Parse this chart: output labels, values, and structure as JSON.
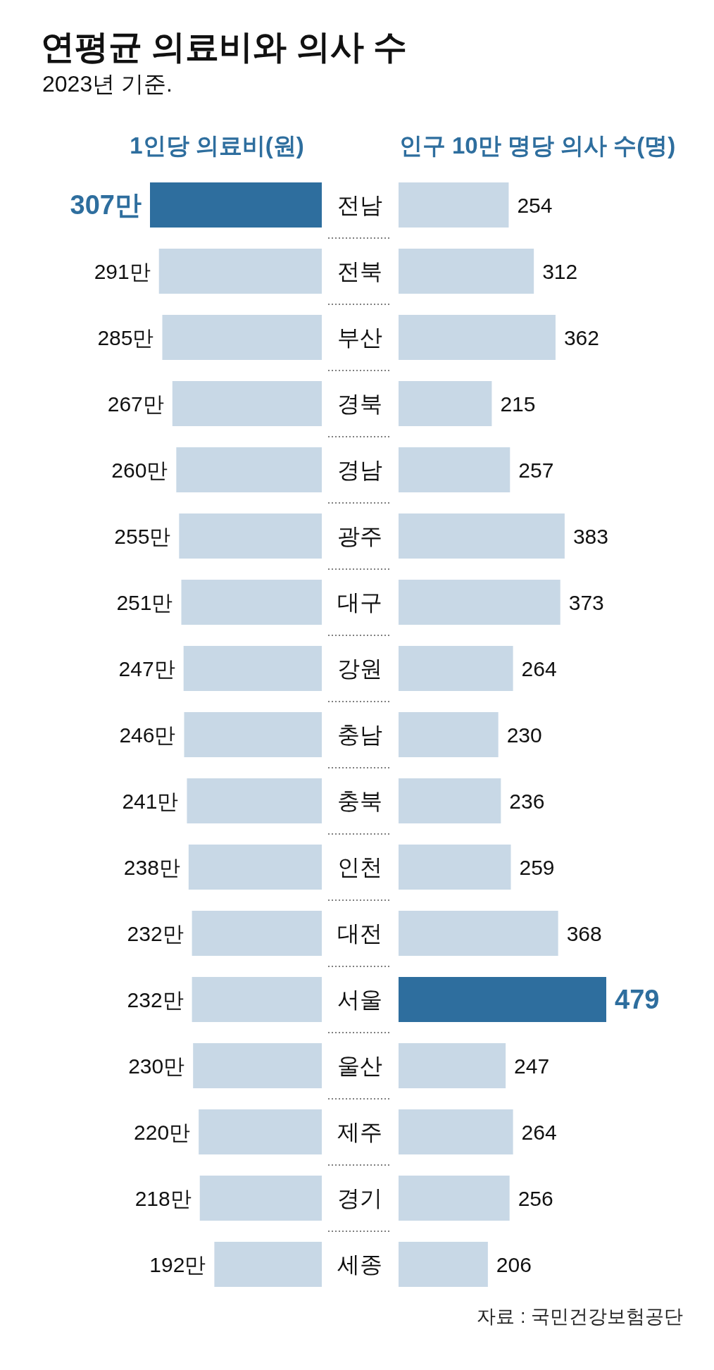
{
  "chart_data": [
    {
      "type": "bar",
      "orientation": "horizontal",
      "title": "연평균 의료비와 의사 수",
      "subtitle": "2023년 기준.",
      "xlabel": "1인당 의료비(원)",
      "categories": [
        "전남",
        "전북",
        "부산",
        "경북",
        "경남",
        "광주",
        "대구",
        "강원",
        "충남",
        "충북",
        "인천",
        "대전",
        "서울",
        "울산",
        "제주",
        "경기",
        "세종"
      ],
      "values": [
        307,
        291,
        285,
        267,
        260,
        255,
        251,
        247,
        246,
        241,
        238,
        232,
        232,
        230,
        220,
        218,
        192
      ],
      "value_labels": [
        "307만",
        "291만",
        "285만",
        "267만",
        "260만",
        "255만",
        "251만",
        "247만",
        "246만",
        "241만",
        "238만",
        "232만",
        "232만",
        "230만",
        "220만",
        "218만",
        "192만"
      ],
      "colors": [
        "#2e6e9e",
        "#c8d8e6",
        "#c8d8e6",
        "#c8d8e6",
        "#c8d8e6",
        "#c8d8e6",
        "#c8d8e6",
        "#c8d8e6",
        "#c8d8e6",
        "#c8d8e6",
        "#c8d8e6",
        "#c8d8e6",
        "#c8d8e6",
        "#c8d8e6",
        "#c8d8e6",
        "#c8d8e6",
        "#c8d8e6"
      ]
    },
    {
      "type": "bar",
      "orientation": "horizontal",
      "xlabel": "인구 10만 명당 의사 수(명)",
      "data_labels": true,
      "annotations": [
        "자료 : 국민건강보험공단"
      ],
      "categories": [
        null,
        null,
        null,
        null,
        null,
        null,
        null,
        null,
        null,
        null,
        null,
        null,
        null,
        null,
        null,
        null,
        null
      ],
      "values": [
        254,
        312,
        362,
        215,
        257,
        383,
        373,
        264,
        230,
        236,
        259,
        368,
        479,
        247,
        264,
        256,
        206
      ],
      "colors": [
        "#c8d8e6",
        "#c8d8e6",
        "#c8d8e6",
        "#c8d8e6",
        "#c8d8e6",
        "#c8d8e6",
        "#c8d8e6",
        "#c8d8e6",
        "#c8d8e6",
        "#c8d8e6",
        "#c8d8e6",
        "#c8d8e6",
        "#2e6e9e",
        "#c8d8e6",
        "#c8d8e6",
        "#c8d8e6",
        "#c8d8e6"
      ]
    }
  ]
}
